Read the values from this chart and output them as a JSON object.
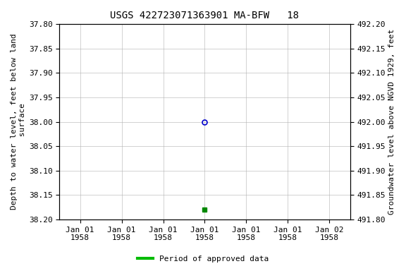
{
  "title": "USGS 422723071363901 MA-BFW   18",
  "ylabel_left": "Depth to water level, feet below land\n surface",
  "ylabel_right": "Groundwater level above NGVD 1929, feet",
  "ylim_left": [
    37.8,
    38.2
  ],
  "ylim_right": [
    491.8,
    492.2
  ],
  "yticks_left": [
    37.8,
    37.85,
    37.9,
    37.95,
    38.0,
    38.05,
    38.1,
    38.15,
    38.2
  ],
  "yticks_right": [
    491.8,
    491.85,
    491.9,
    491.95,
    492.0,
    492.05,
    492.1,
    492.15,
    492.2
  ],
  "xtick_positions": [
    0,
    1,
    2,
    3,
    4,
    5,
    6
  ],
  "xtick_labels": [
    "Jan 01\n1958",
    "Jan 01\n1958",
    "Jan 01\n1958",
    "Jan 01\n1958",
    "Jan 01\n1958",
    "Jan 01\n1958",
    "Jan 02\n1958"
  ],
  "xlim": [
    -0.5,
    6.5
  ],
  "data_point_open": {
    "x": 3,
    "value": 38.0
  },
  "data_point_filled": {
    "x": 3,
    "value": 38.18
  },
  "legend_label": "Period of approved data",
  "legend_color": "#00bb00",
  "background_color": "#ffffff",
  "grid_color": "#b0b0b0",
  "point_color_open": "#0000cc",
  "point_color_filled": "#008800",
  "title_fontsize": 10,
  "label_fontsize": 8,
  "tick_fontsize": 8
}
